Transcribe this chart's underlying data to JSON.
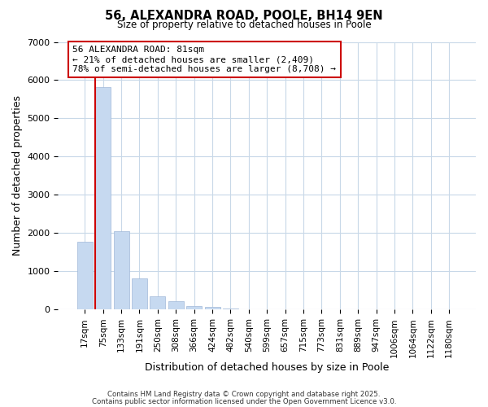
{
  "title": "56, ALEXANDRA ROAD, POOLE, BH14 9EN",
  "subtitle": "Size of property relative to detached houses in Poole",
  "xlabel": "Distribution of detached houses by size in Poole",
  "ylabel": "Number of detached properties",
  "bar_labels": [
    "17sqm",
    "75sqm",
    "133sqm",
    "191sqm",
    "250sqm",
    "308sqm",
    "366sqm",
    "424sqm",
    "482sqm",
    "540sqm",
    "599sqm",
    "657sqm",
    "715sqm",
    "773sqm",
    "831sqm",
    "889sqm",
    "947sqm",
    "1006sqm",
    "1064sqm",
    "1122sqm",
    "1180sqm"
  ],
  "bar_values": [
    1780,
    5820,
    2060,
    820,
    360,
    220,
    100,
    70,
    30,
    10,
    5,
    2,
    1,
    0,
    0,
    0,
    0,
    0,
    0,
    0,
    0
  ],
  "bar_color": "#c6d9f0",
  "bar_edge_color": "#a0b8d8",
  "ylim": [
    0,
    7000
  ],
  "yticks": [
    0,
    1000,
    2000,
    3000,
    4000,
    5000,
    6000,
    7000
  ],
  "property_line_color": "#cc0000",
  "annotation_title": "56 ALEXANDRA ROAD: 81sqm",
  "annotation_line1": "← 21% of detached houses are smaller (2,409)",
  "annotation_line2": "78% of semi-detached houses are larger (8,708) →",
  "annotation_box_color": "#ffffff",
  "annotation_box_edge": "#cc0000",
  "footer1": "Contains HM Land Registry data © Crown copyright and database right 2025.",
  "footer2": "Contains public sector information licensed under the Open Government Licence v3.0.",
  "bg_color": "#ffffff",
  "grid_color": "#c8d8e8"
}
